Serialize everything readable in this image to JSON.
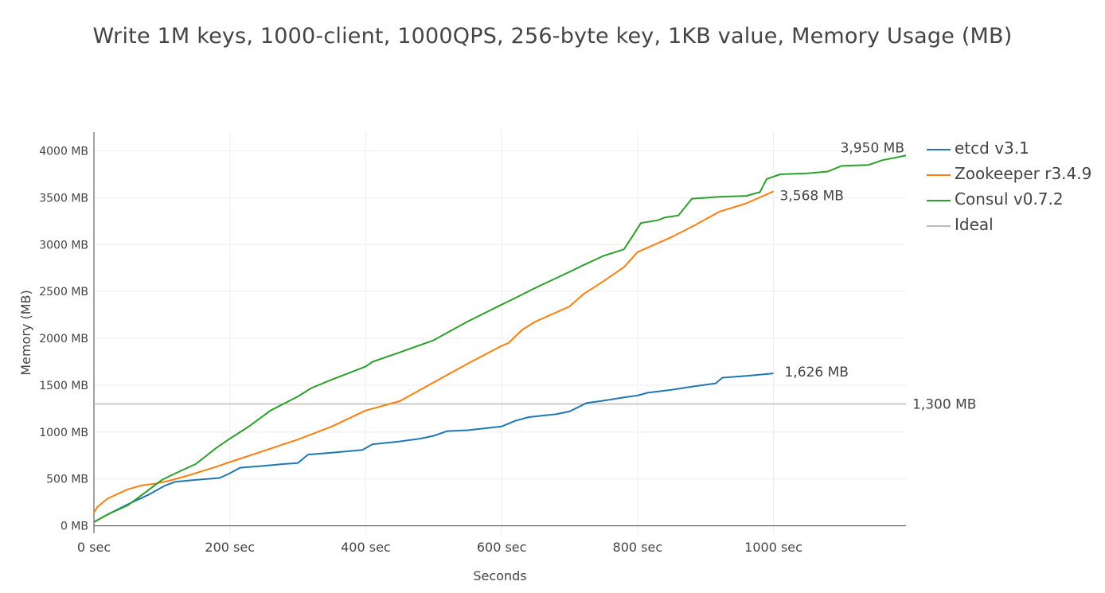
{
  "chart_data": {
    "type": "line",
    "title": "Write 1M keys, 1000-client, 1000QPS, 256-byte key, 1KB value, Memory Usage (MB)",
    "xlabel": "Seconds",
    "ylabel": "Memory (MB)",
    "xlim": [
      0,
      1195
    ],
    "ylim": [
      -80,
      4200
    ],
    "x_ticks": [
      0,
      200,
      400,
      600,
      800,
      1000
    ],
    "x_tick_labels": [
      "0 sec",
      "200 sec",
      "400 sec",
      "600 sec",
      "800 sec",
      "1000 sec"
    ],
    "y_ticks": [
      0,
      500,
      1000,
      1500,
      2000,
      2500,
      3000,
      3500,
      4000
    ],
    "y_tick_labels": [
      "0 MB",
      "500 MB",
      "1000 MB",
      "1500 MB",
      "2000 MB",
      "2500 MB",
      "3000 MB",
      "3500 MB",
      "4000 MB"
    ],
    "grid": true,
    "legend_position": "right",
    "series": [
      {
        "name": "etcd v3.1",
        "color": "#1f77b4",
        "x": [
          0,
          20,
          50,
          80,
          105,
          120,
          150,
          185,
          200,
          215,
          250,
          280,
          300,
          315,
          350,
          395,
          410,
          450,
          480,
          500,
          520,
          550,
          600,
          620,
          640,
          680,
          700,
          725,
          745,
          780,
          800,
          815,
          850,
          885,
          915,
          925,
          960,
          1000
        ],
        "y": [
          40,
          120,
          230,
          330,
          430,
          470,
          490,
          510,
          560,
          620,
          640,
          660,
          670,
          760,
          780,
          810,
          870,
          900,
          930,
          960,
          1010,
          1020,
          1060,
          1120,
          1160,
          1190,
          1220,
          1310,
          1330,
          1370,
          1390,
          1420,
          1450,
          1490,
          1520,
          1580,
          1600,
          1626
        ]
      },
      {
        "name": "Zookeeper r3.4.9",
        "color": "#ff7f0e",
        "x": [
          0,
          5,
          20,
          50,
          70,
          90,
          110,
          140,
          180,
          200,
          250,
          300,
          350,
          400,
          450,
          500,
          550,
          600,
          610,
          630,
          650,
          700,
          720,
          750,
          780,
          800,
          850,
          880,
          920,
          960,
          1000
        ],
        "y": [
          140,
          200,
          290,
          390,
          430,
          450,
          480,
          540,
          630,
          680,
          800,
          920,
          1060,
          1230,
          1330,
          1530,
          1730,
          1920,
          1950,
          2090,
          2180,
          2340,
          2470,
          2610,
          2760,
          2920,
          3080,
          3190,
          3350,
          3440,
          3568
        ]
      },
      {
        "name": "Consul v0.7.2",
        "color": "#2ca02c",
        "x": [
          0,
          20,
          50,
          80,
          100,
          120,
          150,
          180,
          200,
          230,
          260,
          300,
          320,
          350,
          400,
          410,
          450,
          500,
          520,
          550,
          600,
          620,
          650,
          700,
          720,
          750,
          780,
          790,
          805,
          830,
          840,
          860,
          880,
          920,
          960,
          980,
          990,
          1010,
          1050,
          1080,
          1100,
          1140,
          1160,
          1195
        ],
        "y": [
          40,
          120,
          220,
          380,
          490,
          560,
          660,
          830,
          930,
          1070,
          1230,
          1380,
          1470,
          1560,
          1700,
          1750,
          1850,
          1980,
          2060,
          2180,
          2360,
          2430,
          2540,
          2710,
          2780,
          2880,
          2950,
          3060,
          3230,
          3260,
          3290,
          3310,
          3490,
          3510,
          3520,
          3560,
          3700,
          3750,
          3760,
          3780,
          3840,
          3850,
          3900,
          3950
        ]
      },
      {
        "name": "Ideal",
        "color": "#bbbbbb",
        "x": [
          0,
          1195
        ],
        "y": [
          1300,
          1300
        ]
      }
    ],
    "annotations": [
      {
        "text": "3,950 MB",
        "x": 1195,
        "y": 3950,
        "series": "Consul v0.7.2"
      },
      {
        "text": "3,568 MB",
        "x": 1000,
        "y": 3568,
        "series": "Zookeeper r3.4.9"
      },
      {
        "text": "1,626 MB",
        "x": 1000,
        "y": 1626,
        "series": "etcd v3.1"
      },
      {
        "text": "1,300 MB",
        "x": 1195,
        "y": 1300,
        "series": "Ideal"
      }
    ]
  }
}
